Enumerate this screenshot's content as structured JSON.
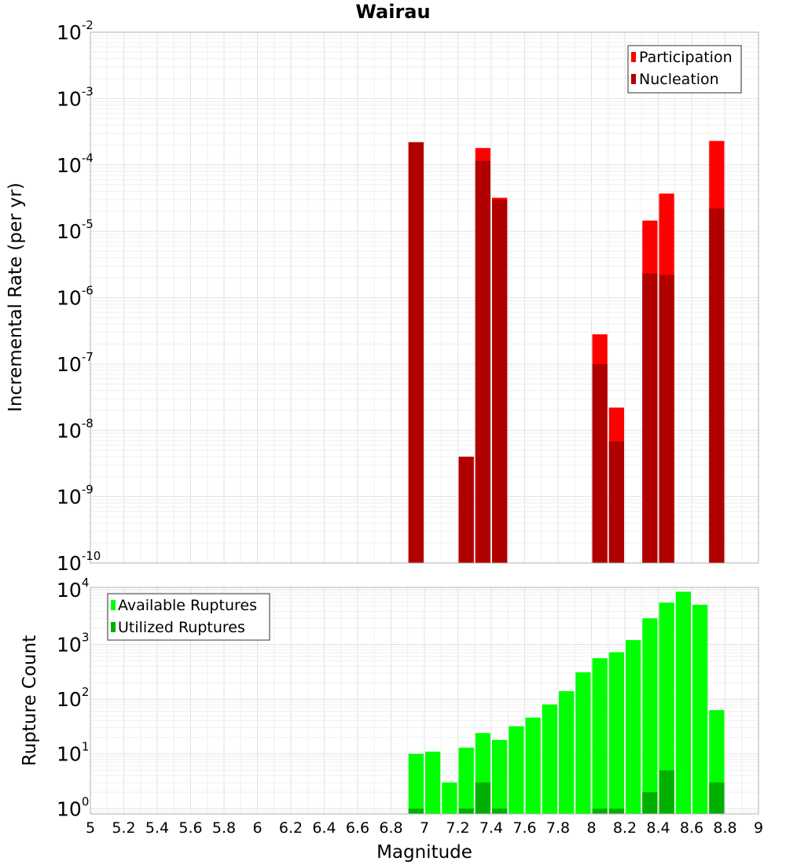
{
  "chart_data": [
    {
      "type": "bar",
      "title": "Wairau",
      "xlabel": "",
      "ylabel": "Incremental Rate (per yr)",
      "xlim": [
        5,
        9
      ],
      "ylim": [
        1e-10,
        0.01
      ],
      "yscale": "log",
      "y_tick_exponents": [
        -10,
        -9,
        -8,
        -7,
        -6,
        -5,
        -4,
        -3,
        -2
      ],
      "bar_width": 0.1,
      "grid": true,
      "legend_position": "top-right",
      "series": [
        {
          "name": "Participation",
          "color": "#ff0000",
          "x": [
            6.95,
            7.25,
            7.35,
            7.45,
            8.05,
            8.15,
            8.35,
            8.45,
            8.75
          ],
          "values": [
            0.00022,
            4e-09,
            0.00018,
            3.2e-05,
            2.8e-07,
            2.2e-08,
            1.45e-05,
            3.7e-05,
            0.00023
          ]
        },
        {
          "name": "Nucleation",
          "color": "#b00000",
          "x": [
            6.95,
            7.25,
            7.35,
            7.45,
            8.05,
            8.15,
            8.35,
            8.45,
            8.75
          ],
          "values": [
            0.00022,
            4e-09,
            0.000115,
            3e-05,
            1e-07,
            6.8e-09,
            2.3e-06,
            2.2e-06,
            2.2e-05
          ]
        }
      ]
    },
    {
      "type": "bar",
      "title": "",
      "xlabel": "Magnitude",
      "ylabel": "Rupture Count",
      "xlim": [
        5,
        9
      ],
      "x_ticks": [
        "5",
        "5.2",
        "5.4",
        "5.6",
        "5.8",
        "6",
        "6.2",
        "6.4",
        "6.6",
        "6.8",
        "7",
        "7.2",
        "7.4",
        "7.6",
        "7.8",
        "8",
        "8.2",
        "8.4",
        "8.6",
        "8.8",
        "9"
      ],
      "ylim": [
        0.8,
        11000
      ],
      "yscale": "log",
      "y_tick_exponents": [
        0,
        1,
        2,
        3,
        4
      ],
      "bar_width": 0.1,
      "grid": true,
      "legend_position": "top-left",
      "series": [
        {
          "name": "Available Ruptures",
          "color": "#00ff00",
          "x": [
            6.95,
            7.05,
            7.15,
            7.25,
            7.35,
            7.45,
            7.55,
            7.65,
            7.75,
            7.85,
            7.95,
            8.05,
            8.15,
            8.25,
            8.35,
            8.45,
            8.55,
            8.65,
            8.75
          ],
          "values": [
            10,
            11,
            3,
            13,
            24,
            18,
            32,
            46,
            80,
            140,
            310,
            560,
            720,
            1200,
            3000,
            5800,
            9200,
            5300,
            63
          ]
        },
        {
          "name": "Utilized Ruptures",
          "color": "#00b000",
          "x": [
            6.95,
            7.05,
            7.15,
            7.25,
            7.35,
            7.45,
            7.55,
            7.65,
            7.75,
            7.85,
            7.95,
            8.05,
            8.15,
            8.25,
            8.35,
            8.45,
            8.55,
            8.65,
            8.75
          ],
          "values": [
            1,
            0,
            0,
            1,
            3,
            1,
            0,
            0,
            0,
            0,
            0,
            1,
            1,
            0,
            2,
            5,
            0,
            0,
            3
          ]
        }
      ]
    }
  ]
}
